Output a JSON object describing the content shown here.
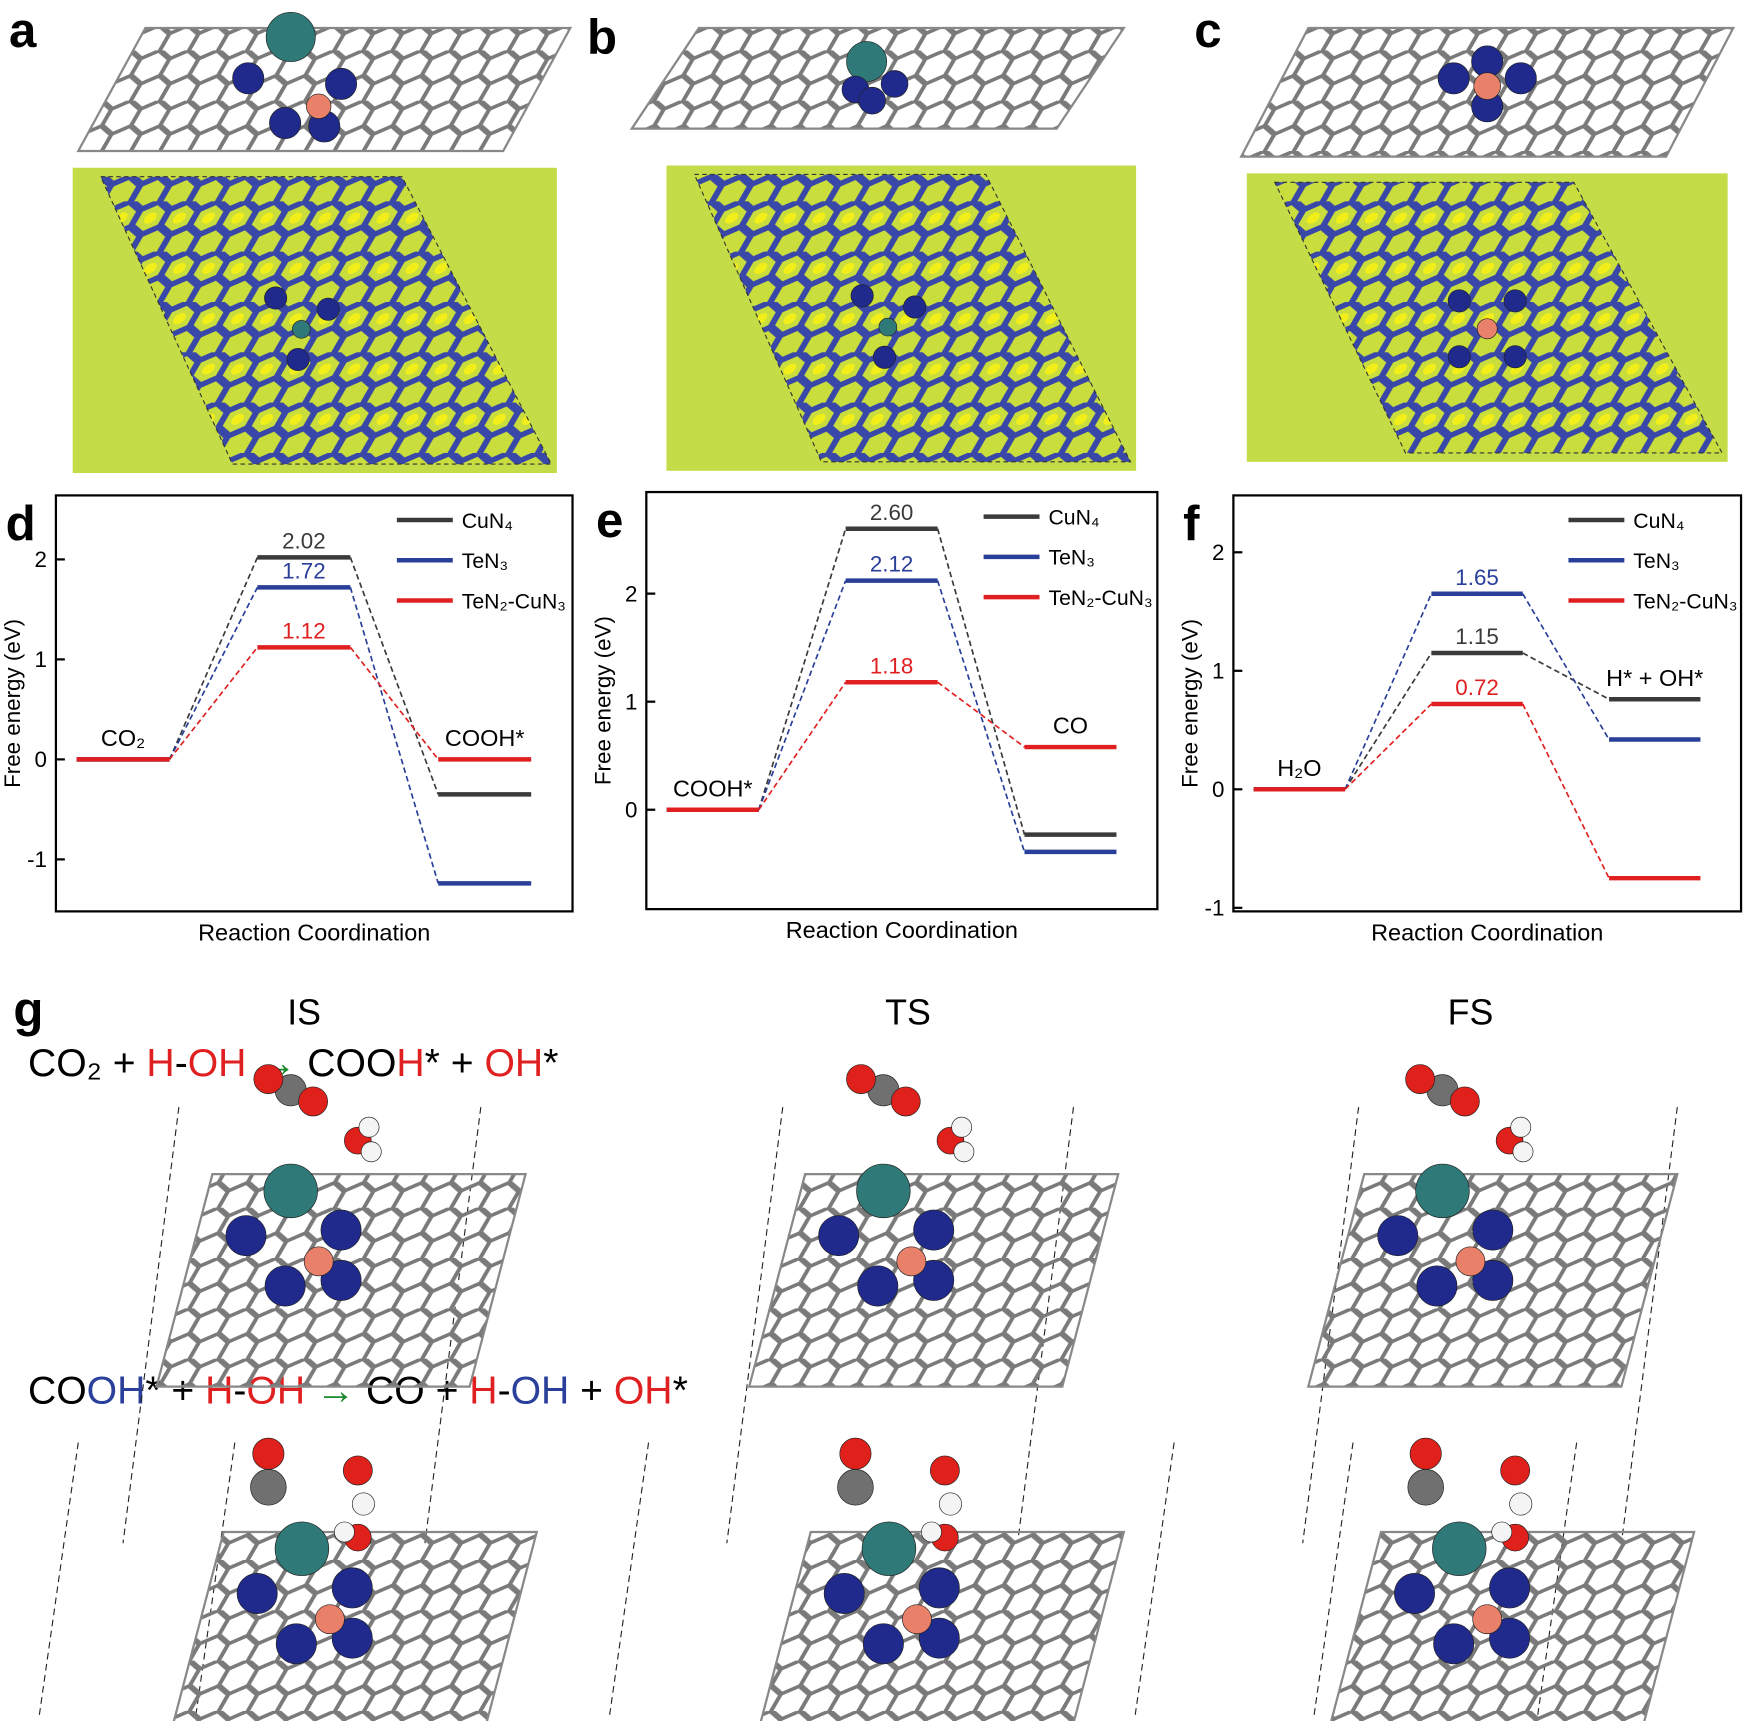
{
  "structure_panels": [
    "a",
    "b",
    "c"
  ],
  "chart_data": [
    {
      "type": "energy",
      "panel": "d",
      "ylabel": "Free energy (eV)",
      "xlabel": "Reaction Coordination",
      "categories": [
        "CO₂",
        null,
        "COOH*"
      ],
      "ylim": [
        -1.52,
        2.64
      ],
      "yticks": [
        -1,
        0,
        1,
        2
      ],
      "series": [
        {
          "name": "CuN₄",
          "color": "#3a3a3a",
          "values": [
            0,
            2.02,
            -0.35
          ],
          "value_labels": [
            null,
            "2.02",
            null
          ]
        },
        {
          "name": "TeN₃",
          "color": "#2a3f9a",
          "values": [
            0,
            1.72,
            -1.24
          ],
          "value_labels": [
            null,
            "1.72",
            null
          ]
        },
        {
          "name": "TeN₂-CuN₃",
          "color": "#e02020",
          "values": [
            0,
            1.12,
            0
          ],
          "value_labels": [
            null,
            "1.12",
            null
          ]
        }
      ]
    },
    {
      "type": "energy",
      "panel": "e",
      "ylabel": "Free energy (eV)",
      "xlabel": "Reaction Coordination",
      "categories": [
        "COOH*",
        null,
        "CO"
      ],
      "ylim": [
        -0.92,
        2.94
      ],
      "yticks": [
        0,
        1,
        2
      ],
      "series": [
        {
          "name": "CuN₄",
          "color": "#3a3a3a",
          "values": [
            0,
            2.6,
            -0.23
          ],
          "value_labels": [
            null,
            "2.60",
            null
          ]
        },
        {
          "name": "TeN₃",
          "color": "#2a3f9a",
          "values": [
            0,
            2.12,
            -0.39
          ],
          "value_labels": [
            null,
            "2.12",
            null
          ]
        },
        {
          "name": "TeN₂-CuN₃",
          "color": "#e02020",
          "values": [
            0,
            1.18,
            0.58
          ],
          "value_labels": [
            null,
            "1.18",
            null
          ]
        }
      ]
    },
    {
      "type": "energy",
      "panel": "f",
      "ylabel": "Free energy (eV)",
      "xlabel": "Reaction Coordination",
      "categories": [
        "H₂O",
        null,
        "H* + OH*"
      ],
      "ylim": [
        -1.03,
        2.48
      ],
      "yticks": [
        -1,
        0,
        1,
        2
      ],
      "series": [
        {
          "name": "CuN₄",
          "color": "#3a3a3a",
          "values": [
            0,
            1.15,
            0.76
          ],
          "value_labels": [
            null,
            "1.15",
            null
          ]
        },
        {
          "name": "TeN₃",
          "color": "#2a3f9a",
          "values": [
            0,
            1.65,
            0.42
          ],
          "value_labels": [
            null,
            "1.65",
            null
          ]
        },
        {
          "name": "TeN₂-CuN₃",
          "color": "#e02020",
          "values": [
            0,
            0.72,
            -0.75
          ],
          "value_labels": [
            null,
            "0.72",
            null
          ]
        }
      ]
    }
  ],
  "reaction_panel": {
    "label": "g",
    "states": [
      "IS",
      "TS",
      "FS"
    ],
    "equations": [
      {
        "segments": [
          {
            "text": "CO₂ + ",
            "color": "#000000"
          },
          {
            "text": "H",
            "color": "#e02020"
          },
          {
            "text": "-",
            "color": "#000000"
          },
          {
            "text": "OH",
            "color": "#e02020"
          },
          {
            "text": " → ",
            "color": "#1a8a2a"
          },
          {
            "text": "COO",
            "color": "#000000"
          },
          {
            "text": "H",
            "color": "#e02020"
          },
          {
            "text": "* + ",
            "color": "#000000"
          },
          {
            "text": "OH",
            "color": "#e02020"
          },
          {
            "text": "*",
            "color": "#000000"
          }
        ]
      },
      {
        "segments": [
          {
            "text": "CO",
            "color": "#000000"
          },
          {
            "text": "OH",
            "color": "#2a3f9a"
          },
          {
            "text": "* + ",
            "color": "#000000"
          },
          {
            "text": "H",
            "color": "#e02020"
          },
          {
            "text": "-",
            "color": "#000000"
          },
          {
            "text": "OH",
            "color": "#e02020"
          },
          {
            "text": " → ",
            "color": "#1a8a2a"
          },
          {
            "text": "CO + ",
            "color": "#000000"
          },
          {
            "text": "H",
            "color": "#e02020"
          },
          {
            "text": "-",
            "color": "#000000"
          },
          {
            "text": "OH",
            "color": "#2a3f9a"
          },
          {
            "text": " + ",
            "color": "#000000"
          },
          {
            "text": "OH",
            "color": "#e02020"
          },
          {
            "text": "*",
            "color": "#000000"
          }
        ]
      }
    ]
  }
}
